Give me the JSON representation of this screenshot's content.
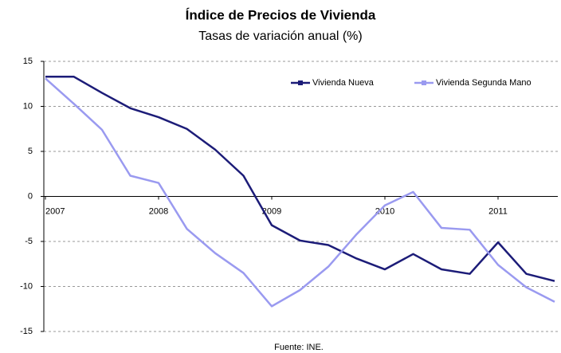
{
  "chart_data": {
    "type": "line",
    "title": "Índice de Precios de Vivienda",
    "subtitle": "Tasas de variación anual (%)",
    "source": "Fuente: INE.",
    "categories": [
      "2007",
      null,
      null,
      null,
      "2008",
      null,
      null,
      null,
      "2009",
      null,
      null,
      null,
      "2010",
      null,
      null,
      null,
      "2011",
      null,
      null
    ],
    "series": [
      {
        "name": "Vivienda Nueva",
        "color": "#1c1c78",
        "values": [
          13.3,
          13.3,
          11.5,
          9.8,
          8.8,
          7.5,
          5.2,
          2.3,
          -3.2,
          -4.9,
          -5.4,
          -6.9,
          -8.1,
          -6.4,
          -8.1,
          -8.6,
          -5.1,
          -8.6,
          -9.4
        ]
      },
      {
        "name": "Vivienda Segunda Mano",
        "color": "#9a9af0",
        "values": [
          13.1,
          10.3,
          7.4,
          2.3,
          1.5,
          -3.6,
          -6.3,
          -8.5,
          -12.2,
          -10.4,
          -7.8,
          -4.2,
          -1.0,
          0.5,
          -3.5,
          -3.7,
          -7.6,
          -10.1,
          -11.7
        ]
      }
    ],
    "ylim": [
      -15,
      15
    ],
    "yticks": [
      15,
      10,
      5,
      0,
      -5,
      -10,
      -15
    ],
    "grid": true,
    "legend": "top-right"
  }
}
